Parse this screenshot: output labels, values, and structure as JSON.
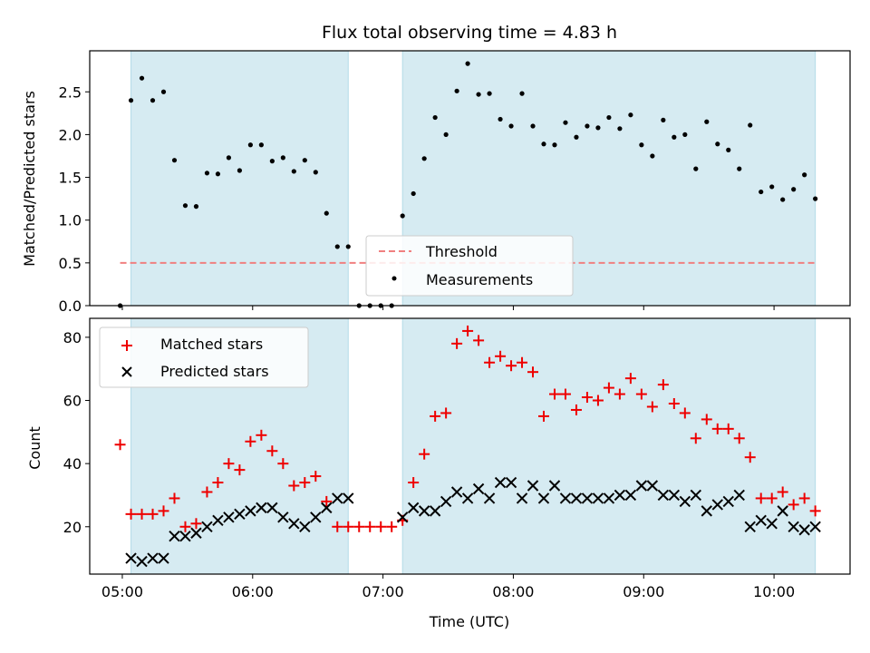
{
  "chart_data": [
    {
      "type": "scatter",
      "title": "Flux total observing time = 4.83 h",
      "xlabel": "",
      "ylabel": "Matched/Predicted stars",
      "xlim": [
        "04:45",
        "10:35"
      ],
      "ylim": [
        0,
        2.98
      ],
      "yticks": [
        0.0,
        0.5,
        1.0,
        1.5,
        2.0,
        2.5
      ],
      "ytick_labels": [
        "0.0",
        "0.5",
        "1.0",
        "1.5",
        "2.0",
        "2.5"
      ],
      "shaded_intervals": [
        [
          "05:04",
          "06:44"
        ],
        [
          "07:09",
          "10:19"
        ]
      ],
      "threshold": {
        "name": "Threshold",
        "value": 0.5,
        "color": "#f08080",
        "style": "dashed"
      },
      "series": [
        {
          "name": "Measurements",
          "color": "#000000",
          "marker": "dot",
          "x": [
            "04:59",
            "05:04",
            "05:09",
            "05:14",
            "05:19",
            "05:24",
            "05:29",
            "05:34",
            "05:39",
            "05:44",
            "05:49",
            "05:54",
            "05:59",
            "06:04",
            "06:09",
            "06:14",
            "06:19",
            "06:24",
            "06:29",
            "06:34",
            "06:39",
            "06:44",
            "06:49",
            "06:54",
            "06:59",
            "07:04",
            "07:09",
            "07:14",
            "07:19",
            "07:24",
            "07:29",
            "07:34",
            "07:39",
            "07:44",
            "07:49",
            "07:54",
            "07:59",
            "08:04",
            "08:09",
            "08:14",
            "08:19",
            "08:24",
            "08:29",
            "08:34",
            "08:39",
            "08:44",
            "08:49",
            "08:54",
            "08:59",
            "09:04",
            "09:09",
            "09:14",
            "09:19",
            "09:24",
            "09:29",
            "09:34",
            "09:39",
            "09:44",
            "09:49",
            "09:54",
            "09:59",
            "10:04",
            "10:09",
            "10:14",
            "10:19"
          ],
          "y": [
            0.0,
            2.4,
            2.66,
            2.4,
            2.5,
            1.7,
            1.17,
            1.16,
            1.55,
            1.54,
            1.73,
            1.58,
            1.88,
            1.88,
            1.69,
            1.73,
            1.57,
            1.7,
            1.56,
            1.08,
            0.69,
            0.69,
            0.0,
            0.0,
            0.0,
            0.0,
            1.05,
            1.31,
            1.72,
            2.2,
            2.0,
            2.51,
            2.83,
            2.47,
            2.48,
            2.18,
            2.1,
            2.48,
            2.1,
            1.89,
            1.88,
            2.14,
            1.97,
            2.1,
            2.08,
            2.2,
            2.07,
            2.23,
            1.88,
            1.75,
            2.17,
            1.97,
            2.0,
            1.6,
            2.15,
            1.89,
            1.82,
            1.6,
            2.11,
            1.33,
            1.39,
            1.24,
            1.36,
            1.53,
            1.25
          ]
        }
      ],
      "legend": {
        "placement": "lower-center",
        "entries": [
          "Threshold",
          "Measurements"
        ]
      }
    },
    {
      "type": "scatter",
      "title": "",
      "xlabel": "Time (UTC)",
      "ylabel": "Count",
      "xlim": [
        "04:45",
        "10:35"
      ],
      "ylim": [
        5,
        86
      ],
      "yticks": [
        20,
        40,
        60,
        80
      ],
      "ytick_labels": [
        "20",
        "40",
        "60",
        "80"
      ],
      "xtick_labels": [
        "05:00",
        "06:00",
        "07:00",
        "08:00",
        "09:00",
        "10:00"
      ],
      "shaded_intervals": [
        [
          "05:04",
          "06:44"
        ],
        [
          "07:09",
          "10:19"
        ]
      ],
      "series": [
        {
          "name": "Matched stars",
          "color": "#ee0000",
          "marker": "plus",
          "x": [
            "04:59",
            "05:04",
            "05:09",
            "05:14",
            "05:19",
            "05:24",
            "05:29",
            "05:34",
            "05:39",
            "05:44",
            "05:49",
            "05:54",
            "05:59",
            "06:04",
            "06:09",
            "06:14",
            "06:19",
            "06:24",
            "06:29",
            "06:34",
            "06:39",
            "06:44",
            "06:49",
            "06:54",
            "06:59",
            "07:04",
            "07:09",
            "07:14",
            "07:19",
            "07:24",
            "07:29",
            "07:34",
            "07:39",
            "07:44",
            "07:49",
            "07:54",
            "07:59",
            "08:04",
            "08:09",
            "08:14",
            "08:19",
            "08:24",
            "08:29",
            "08:34",
            "08:39",
            "08:44",
            "08:49",
            "08:54",
            "08:59",
            "09:04",
            "09:09",
            "09:14",
            "09:19",
            "09:24",
            "09:29",
            "09:34",
            "09:39",
            "09:44",
            "09:49",
            "09:54",
            "09:59",
            "10:04",
            "10:09",
            "10:14",
            "10:19"
          ],
          "y": [
            46,
            24,
            24,
            24,
            25,
            29,
            20,
            21,
            31,
            34,
            40,
            38,
            47,
            49,
            44,
            40,
            33,
            34,
            36,
            28,
            20,
            20,
            20,
            20,
            20,
            20,
            22,
            34,
            43,
            55,
            56,
            78,
            82,
            79,
            72,
            74,
            71,
            72,
            69,
            55,
            62,
            62,
            57,
            61,
            60,
            64,
            62,
            67,
            62,
            58,
            65,
            59,
            56,
            48,
            54,
            51,
            51,
            48,
            42,
            29,
            29,
            31,
            27,
            29,
            25
          ]
        },
        {
          "name": "Predicted stars",
          "color": "#000000",
          "marker": "x",
          "x": [
            "05:04",
            "05:09",
            "05:14",
            "05:19",
            "05:24",
            "05:29",
            "05:34",
            "05:39",
            "05:44",
            "05:49",
            "05:54",
            "05:59",
            "06:04",
            "06:09",
            "06:14",
            "06:19",
            "06:24",
            "06:29",
            "06:34",
            "06:39",
            "06:44",
            "07:09",
            "07:14",
            "07:19",
            "07:24",
            "07:29",
            "07:34",
            "07:39",
            "07:44",
            "07:49",
            "07:54",
            "07:59",
            "08:04",
            "08:09",
            "08:14",
            "08:19",
            "08:24",
            "08:29",
            "08:34",
            "08:39",
            "08:44",
            "08:49",
            "08:54",
            "08:59",
            "09:04",
            "09:09",
            "09:14",
            "09:19",
            "09:24",
            "09:29",
            "09:34",
            "09:39",
            "09:44",
            "09:49",
            "09:54",
            "09:59",
            "10:04",
            "10:09",
            "10:14",
            "10:19"
          ],
          "y": [
            10,
            9,
            10,
            10,
            17,
            17,
            18,
            20,
            22,
            23,
            24,
            25,
            26,
            26,
            23,
            21,
            20,
            23,
            26,
            29,
            29,
            23,
            26,
            25,
            25,
            28,
            31,
            29,
            32,
            29,
            34,
            34,
            29,
            33,
            29,
            33,
            29,
            29,
            29,
            29,
            29,
            30,
            30,
            33,
            33,
            30,
            30,
            28,
            30,
            25,
            27,
            28,
            30,
            20,
            22,
            21,
            25,
            20,
            19,
            20
          ]
        }
      ],
      "legend": {
        "placement": "upper-left",
        "entries": [
          "Matched stars",
          "Predicted stars"
        ]
      }
    }
  ]
}
